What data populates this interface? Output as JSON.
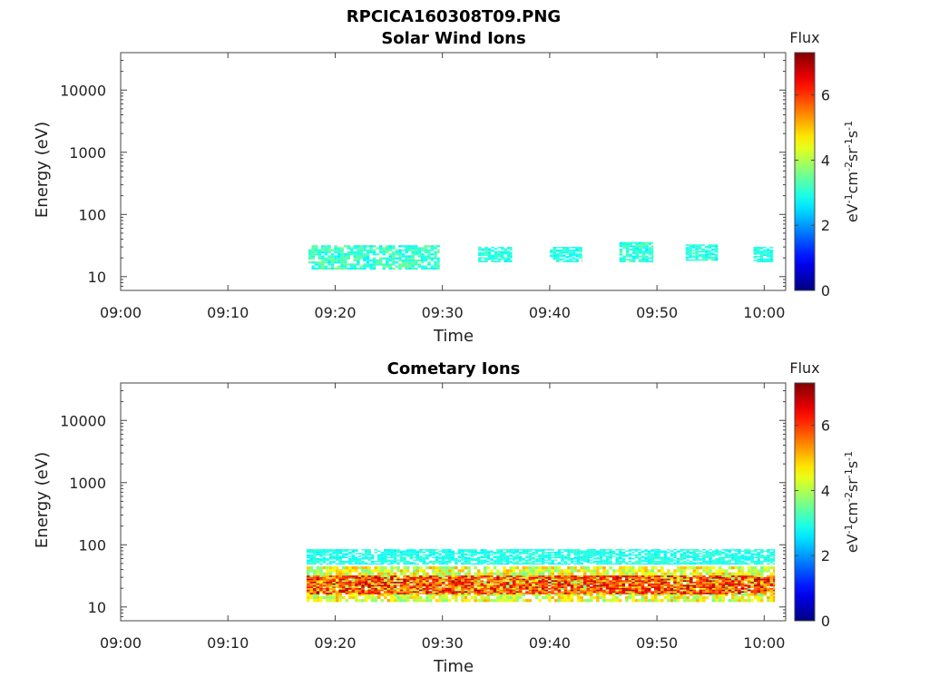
{
  "figure_title": "RPCICA160308T09.PNG",
  "chart_data": [
    {
      "type": "heatmap",
      "title": "Solar Wind Ions",
      "xlabel": "Time",
      "ylabel": "Energy (eV)",
      "y_scale": "log",
      "ylim": [
        6,
        40000
      ],
      "xlim": [
        "09:00",
        "10:02"
      ],
      "x_ticks": [
        "09:00",
        "09:10",
        "09:20",
        "09:30",
        "09:40",
        "09:50",
        "10:00"
      ],
      "y_ticks": [
        "10",
        "100",
        "1000",
        "10000"
      ],
      "colorbar": {
        "title": "Flux",
        "label": "eV-1cm-2sr-1s-1",
        "ticks": [
          "0",
          "2",
          "4",
          "6"
        ],
        "range": [
          0,
          7.3
        ],
        "colormap": "jet"
      },
      "data_blocks": [
        {
          "start": "09:17:30",
          "end": "09:29:45",
          "e_min": 13,
          "e_max": 32,
          "flux_min": 2.6,
          "flux_max": 3.6
        },
        {
          "start": "09:33:20",
          "end": "09:36:30",
          "e_min": 17,
          "e_max": 30,
          "flux_min": 2.6,
          "flux_max": 3.3
        },
        {
          "start": "09:40:00",
          "end": "09:43:00",
          "e_min": 17,
          "e_max": 30,
          "flux_min": 2.6,
          "flux_max": 3.3
        },
        {
          "start": "09:46:30",
          "end": "09:49:40",
          "e_min": 17,
          "e_max": 36,
          "flux_min": 2.6,
          "flux_max": 3.5
        },
        {
          "start": "09:52:40",
          "end": "09:55:40",
          "e_min": 18,
          "e_max": 33,
          "flux_min": 2.6,
          "flux_max": 3.4
        },
        {
          "start": "09:59:00",
          "end": "10:00:50",
          "e_min": 17,
          "e_max": 30,
          "flux_min": 2.6,
          "flux_max": 3.2
        }
      ]
    },
    {
      "type": "heatmap",
      "title": "Cometary Ions",
      "xlabel": "Time",
      "ylabel": "Energy (eV)",
      "y_scale": "log",
      "ylim": [
        6,
        40000
      ],
      "xlim": [
        "09:00",
        "10:02"
      ],
      "x_ticks": [
        "09:00",
        "09:10",
        "09:20",
        "09:30",
        "09:40",
        "09:50",
        "10:00"
      ],
      "y_ticks": [
        "10",
        "100",
        "1000",
        "10000"
      ],
      "colorbar": {
        "title": "Flux",
        "label": "eV-1cm-2sr-1s-1",
        "ticks": [
          "0",
          "2",
          "4",
          "6"
        ],
        "range": [
          0,
          7.3
        ],
        "colormap": "jet"
      },
      "data_blocks": [
        {
          "start": "09:17:20",
          "end": "10:01:00",
          "e_min": 48,
          "e_max": 85,
          "flux_min": 2.6,
          "flux_max": 3.2
        },
        {
          "start": "09:17:20",
          "end": "10:01:00",
          "e_min": 12,
          "e_max": 45,
          "flux_min": 3.5,
          "flux_max": 5.2
        },
        {
          "start": "09:17:20",
          "end": "10:01:00",
          "e_min": 16,
          "e_max": 32,
          "flux_min": 5.0,
          "flux_max": 7.0
        }
      ]
    }
  ]
}
